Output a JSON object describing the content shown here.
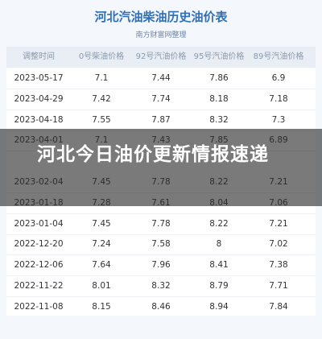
{
  "header": {
    "title": "河北汽油柴油历史油价表",
    "subtitle": "南方财富网整理"
  },
  "table": {
    "columns": [
      "调整时间",
      "0号柴油价格",
      "92号汽油价格",
      "95号汽油价格",
      "89号汽油价格"
    ],
    "rows": [
      [
        "2023-05-17",
        "7.1",
        "7.44",
        "7.86",
        "6.9"
      ],
      [
        "2023-04-29",
        "7.42",
        "7.74",
        "8.18",
        "7.18"
      ],
      [
        "2023-04-18",
        "7.55",
        "7.87",
        "8.32",
        "7.3"
      ],
      [
        "2023-04-01",
        "7.1",
        "7.43",
        "7.85",
        "6.89"
      ],
      [
        "2023-02-04",
        "7.45",
        "7.78",
        "8.22",
        "7.21"
      ],
      [
        "2023-01-18",
        "7.28",
        "7.61",
        "8.04",
        "7.06"
      ],
      [
        "2023-01-04",
        "7.45",
        "7.78",
        "8.22",
        "7.21"
      ],
      [
        "2022-12-20",
        "7.24",
        "7.58",
        "8",
        "7.02"
      ],
      [
        "2022-12-06",
        "7.64",
        "7.96",
        "8.41",
        "7.38"
      ],
      [
        "2022-11-22",
        "8.01",
        "8.32",
        "8.79",
        "7.71"
      ],
      [
        "2022-11-08",
        "8.15",
        "8.46",
        "8.94",
        "7.84"
      ]
    ]
  },
  "banner": {
    "text": "河北今日油价更新情报速递"
  }
}
